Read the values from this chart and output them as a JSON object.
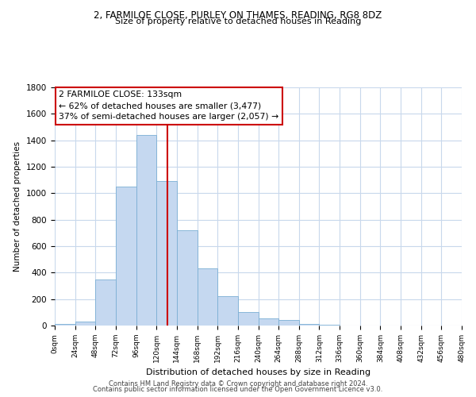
{
  "title1": "2, FARMILOE CLOSE, PURLEY ON THAMES, READING, RG8 8DZ",
  "title2": "Size of property relative to detached houses in Reading",
  "xlabel": "Distribution of detached houses by size in Reading",
  "ylabel": "Number of detached properties",
  "bar_color": "#c5d8f0",
  "bar_edge_color": "#7bafd4",
  "property_size": 133,
  "vline_color": "#cc0000",
  "annotation_line1": "2 FARMILOE CLOSE: 133sqm",
  "annotation_line2": "← 62% of detached houses are smaller (3,477)",
  "annotation_line3": "37% of semi-detached houses are larger (2,057) →",
  "bins": [
    0,
    24,
    48,
    72,
    96,
    120,
    144,
    168,
    192,
    216,
    240,
    264,
    288,
    312,
    336,
    360,
    384,
    408,
    432,
    456,
    480
  ],
  "counts": [
    15,
    30,
    350,
    1050,
    1440,
    1090,
    720,
    430,
    220,
    105,
    55,
    40,
    15,
    5,
    2,
    2,
    1,
    1,
    0,
    0
  ],
  "footer1": "Contains HM Land Registry data © Crown copyright and database right 2024.",
  "footer2": "Contains public sector information licensed under the Open Government Licence v3.0.",
  "bg_color": "#ffffff",
  "grid_color": "#c8d8ec",
  "annotation_box_edge": "#cc0000",
  "ylim_max": 1800,
  "xlim_max": 480
}
